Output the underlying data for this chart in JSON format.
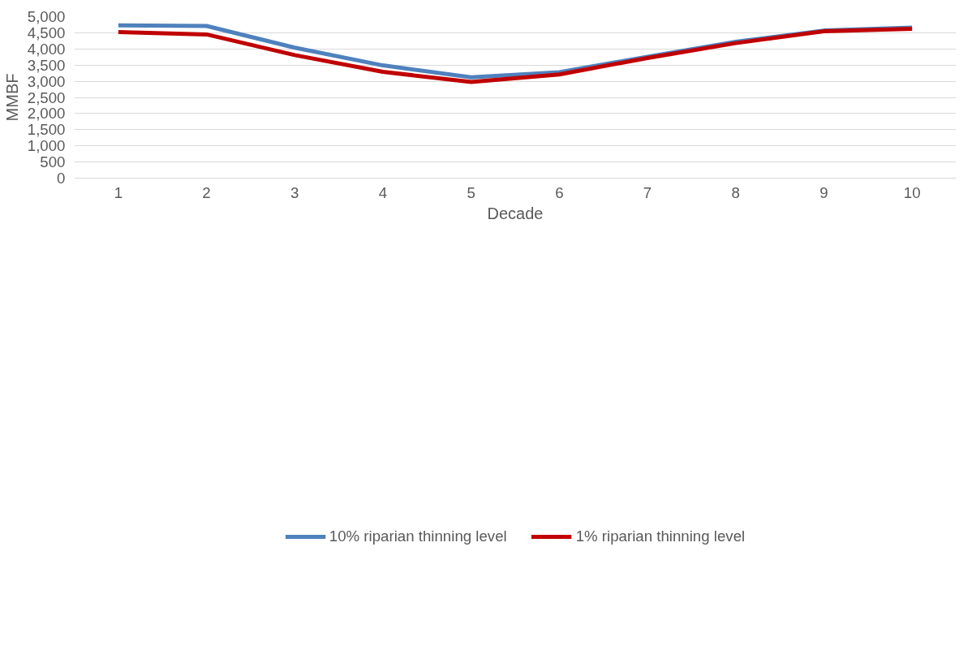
{
  "chart_data": {
    "type": "line",
    "xlabel": "Decade",
    "ylabel": "MMBF",
    "categories": [
      "1",
      "2",
      "3",
      "4",
      "5",
      "6",
      "7",
      "8",
      "9",
      "10"
    ],
    "series": [
      {
        "name": "10% riparian thinning level",
        "color": "#4f81bd",
        "values": [
          4730,
          4710,
          4040,
          3490,
          3120,
          3280,
          3760,
          4220,
          4570,
          4660
        ]
      },
      {
        "name": "1% riparian thinning level",
        "color": "#c00000",
        "values": [
          4520,
          4450,
          3810,
          3290,
          2980,
          3210,
          3720,
          4180,
          4550,
          4620
        ]
      }
    ],
    "ylim": [
      0,
      5000
    ],
    "yticks": [
      {
        "value": 0,
        "label": "0"
      },
      {
        "value": 500,
        "label": "500"
      },
      {
        "value": 1000,
        "label": "1,000"
      },
      {
        "value": 1500,
        "label": "1,500"
      },
      {
        "value": 2000,
        "label": "2,000"
      },
      {
        "value": 2500,
        "label": "2,500"
      },
      {
        "value": 3000,
        "label": "3,000"
      },
      {
        "value": 3500,
        "label": "3,500"
      },
      {
        "value": 4000,
        "label": "4,000"
      },
      {
        "value": 4500,
        "label": "4,500"
      },
      {
        "value": 5000,
        "label": "5,000"
      }
    ],
    "grid": "y",
    "legend": "bottom",
    "marker": "none",
    "line_style": "solid"
  }
}
